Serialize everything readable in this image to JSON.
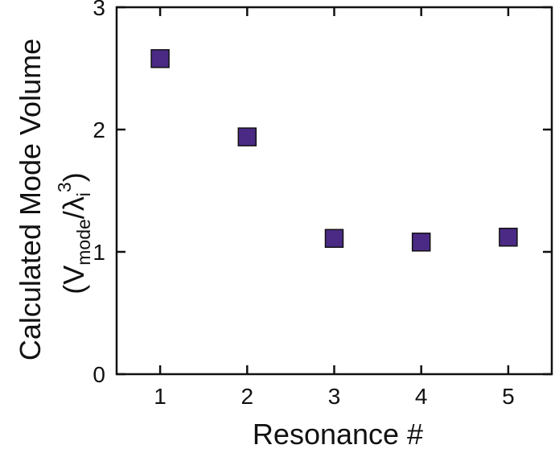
{
  "chart_data": {
    "type": "scatter",
    "title": "",
    "xlabel": "Resonance #",
    "ylabel": {
      "line1": "Calculated Mode Volume",
      "open_paren": "(V",
      "sub1": "mode",
      "slash_lambda": "/λ",
      "sub2": "i",
      "sup": "3",
      "close_paren": ")"
    },
    "x_ticks": [
      "1",
      "2",
      "3",
      "4",
      "5"
    ],
    "y_ticks": [
      "0",
      "1",
      "2",
      "3"
    ],
    "xlim": [
      0.5,
      5.5
    ],
    "ylim": [
      0,
      3
    ],
    "grid": false,
    "legend": "none",
    "series": [
      {
        "marker": "square",
        "color": "#4b2a85",
        "points": [
          {
            "x": 1,
            "y": 2.58
          },
          {
            "x": 2,
            "y": 1.94
          },
          {
            "x": 3,
            "y": 1.11
          },
          {
            "x": 4,
            "y": 1.08
          },
          {
            "x": 5,
            "y": 1.12
          }
        ]
      }
    ]
  }
}
